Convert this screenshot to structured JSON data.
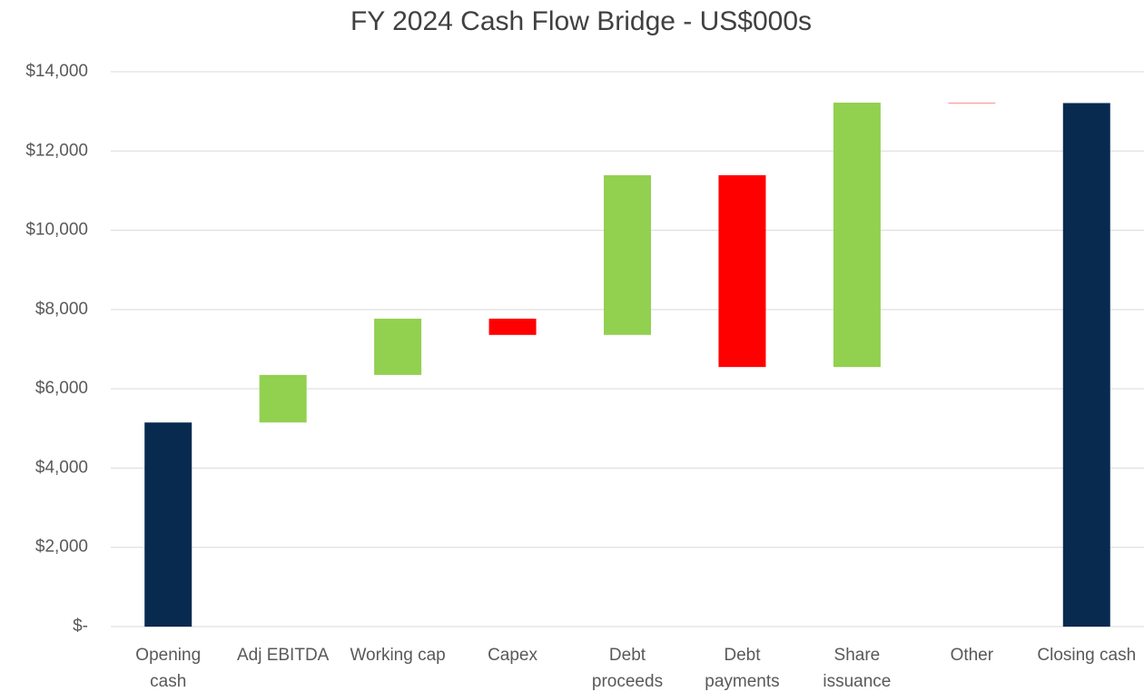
{
  "chart_data": {
    "type": "waterfall",
    "title": "FY 2024 Cash Flow Bridge - US$000s",
    "categories": [
      "Opening cash",
      "Adj EBITDA",
      "Working cap",
      "Capex",
      "Debt proceeds",
      "Debt payments",
      "Share issuance",
      "Other",
      "Closing cash"
    ],
    "values": [
      5150,
      1200,
      1420,
      -410,
      4030,
      -4840,
      6670,
      -10,
      13210
    ],
    "measures": [
      "absolute",
      "relative",
      "relative",
      "relative",
      "relative",
      "relative",
      "relative",
      "relative",
      "total"
    ],
    "colors": {
      "increase": "#92d050",
      "decrease": "#ff0000",
      "total": "#082a4f"
    },
    "ylim": [
      0,
      14000
    ],
    "yticks": [
      {
        "value": 0,
        "label": "$-"
      },
      {
        "value": 2000,
        "label": "$2,000"
      },
      {
        "value": 4000,
        "label": "$4,000"
      },
      {
        "value": 6000,
        "label": "$6,000"
      },
      {
        "value": 8000,
        "label": "$8,000"
      },
      {
        "value": 10000,
        "label": "$10,000"
      },
      {
        "value": 12000,
        "label": "$12,000"
      },
      {
        "value": 14000,
        "label": "$14,000"
      }
    ],
    "grid": true
  }
}
